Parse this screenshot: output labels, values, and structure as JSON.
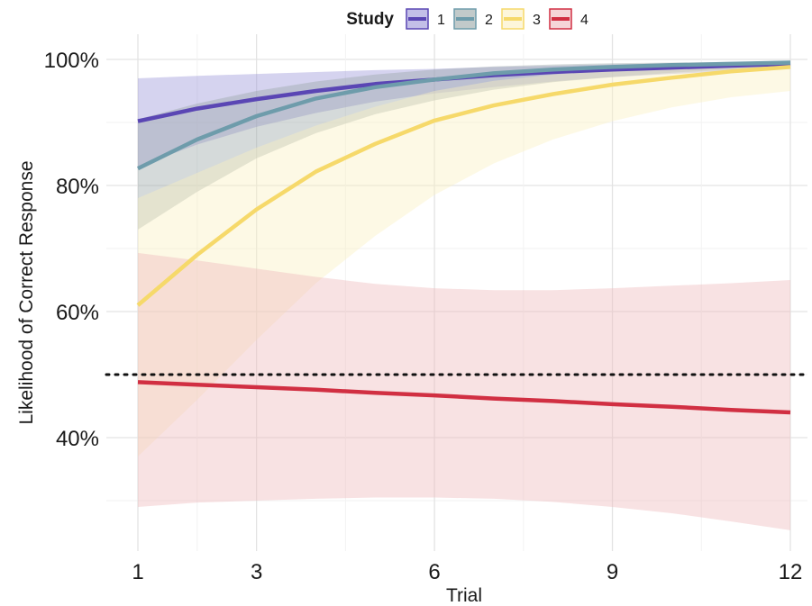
{
  "chart_data": {
    "type": "line",
    "title": "",
    "xlabel": "Trial",
    "ylabel": "Likelihood of Correct Response",
    "xlim": [
      1,
      12
    ],
    "ylim": [
      0.22,
      1.04
    ],
    "x_ticks": [
      1,
      3,
      6,
      9,
      12
    ],
    "x_tick_labels": [
      "1",
      "3",
      "6",
      "9",
      "12"
    ],
    "y_ticks": [
      0.4,
      0.6,
      0.8,
      1.0
    ],
    "y_tick_labels": [
      "40%",
      "60%",
      "80%",
      "100%"
    ],
    "grid": true,
    "legend": {
      "title": "Study",
      "position": "top"
    },
    "reference_line": {
      "y": 0.5,
      "style": "dotted"
    },
    "x": [
      1,
      2,
      3,
      4,
      5,
      6,
      7,
      8,
      9,
      10,
      11,
      12
    ],
    "series": [
      {
        "name": "1",
        "color": "#5a46b4",
        "band_color": "#9b95d8",
        "values": [
          0.902,
          0.922,
          0.937,
          0.95,
          0.961,
          0.968,
          0.975,
          0.98,
          0.984,
          0.987,
          0.99,
          0.993
        ],
        "lower": [
          0.83,
          0.865,
          0.893,
          0.915,
          0.933,
          0.946,
          0.956,
          0.965,
          0.972,
          0.977,
          0.981,
          0.985
        ],
        "upper": [
          0.97,
          0.974,
          0.977,
          0.98,
          0.983,
          0.985,
          0.988,
          0.99,
          0.992,
          0.994,
          0.995,
          0.996
        ]
      },
      {
        "name": "2",
        "color": "#6e9cab",
        "band_color": "#9aa7a6",
        "values": [
          0.827,
          0.873,
          0.91,
          0.938,
          0.956,
          0.968,
          0.978,
          0.984,
          0.988,
          0.991,
          0.993,
          0.995
        ],
        "lower": [
          0.73,
          0.79,
          0.843,
          0.883,
          0.913,
          0.935,
          0.952,
          0.964,
          0.972,
          0.979,
          0.984,
          0.988
        ],
        "upper": [
          0.905,
          0.93,
          0.95,
          0.965,
          0.976,
          0.984,
          0.989,
          0.992,
          0.994,
          0.995,
          0.996,
          0.997
        ]
      },
      {
        "name": "3",
        "color": "#f6d96a",
        "band_color": "#fbf0c2",
        "values": [
          0.61,
          0.69,
          0.762,
          0.822,
          0.866,
          0.903,
          0.927,
          0.945,
          0.96,
          0.971,
          0.981,
          0.988
        ],
        "lower": [
          0.37,
          0.46,
          0.555,
          0.645,
          0.72,
          0.785,
          0.835,
          0.873,
          0.902,
          0.924,
          0.94,
          0.95
        ],
        "upper": [
          0.78,
          0.82,
          0.86,
          0.895,
          0.925,
          0.95,
          0.966,
          0.976,
          0.983,
          0.988,
          0.991,
          0.993
        ]
      },
      {
        "name": "4",
        "color": "#d12f42",
        "band_color": "#efb9bd",
        "values": [
          0.488,
          0.484,
          0.48,
          0.476,
          0.471,
          0.467,
          0.462,
          0.458,
          0.453,
          0.449,
          0.444,
          0.44
        ],
        "lower": [
          0.29,
          0.297,
          0.3,
          0.303,
          0.305,
          0.305,
          0.303,
          0.298,
          0.29,
          0.28,
          0.267,
          0.253
        ],
        "upper": [
          0.693,
          0.681,
          0.668,
          0.655,
          0.644,
          0.637,
          0.634,
          0.634,
          0.637,
          0.641,
          0.645,
          0.65
        ]
      }
    ]
  }
}
